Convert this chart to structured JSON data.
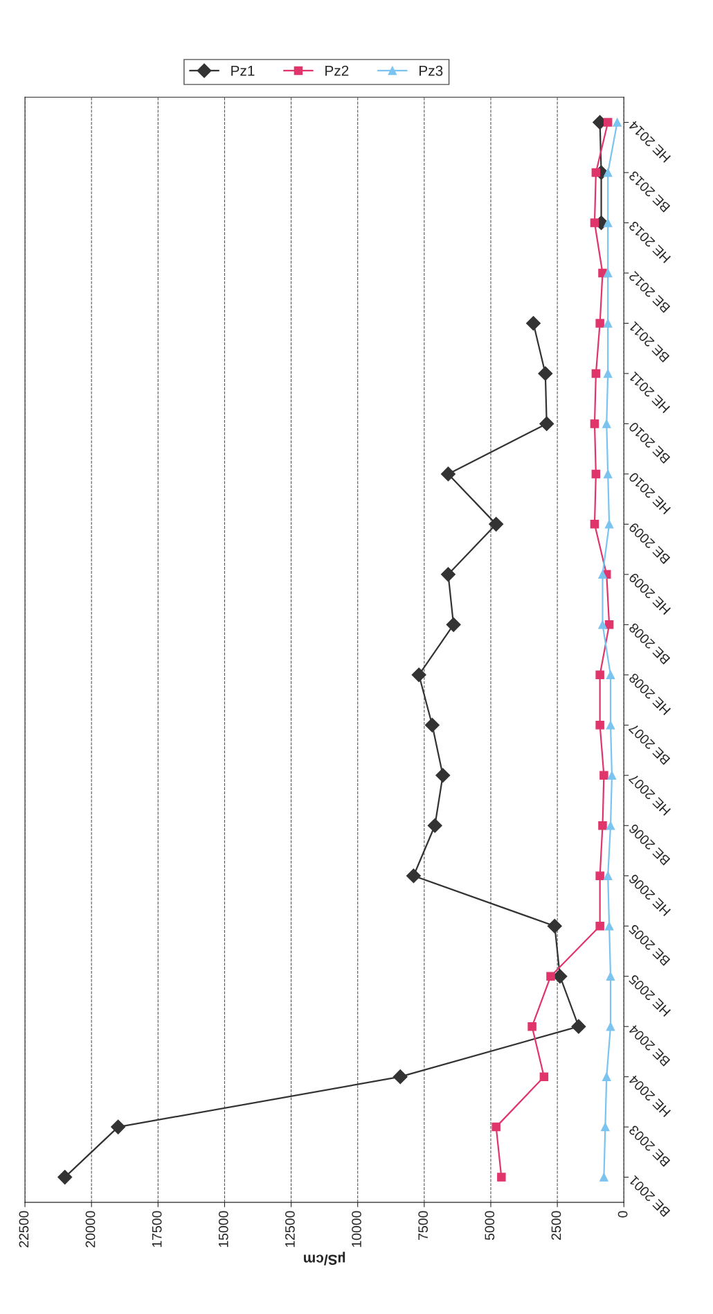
{
  "chart_data": {
    "type": "line",
    "orientation": "horizontal",
    "xlabel": "µS/cm",
    "categories": [
      "HE 2014",
      "BE 2013",
      "HE 2013",
      "BE 2012",
      "BE 2011",
      "HE 2011",
      "BE 2010",
      "HE 2010",
      "BE 2009",
      "HE 2009",
      "BE 2008",
      "HE 2008",
      "BE 2007",
      "HE 2007",
      "BE 2006",
      "HE 2006",
      "BE 2005",
      "HE 2005",
      "BE 2004",
      "HE 2004",
      "BE 2003",
      "BE 2001"
    ],
    "series": [
      {
        "name": "Pz1",
        "color": "#333333",
        "marker": "diamond",
        "values": [
          900,
          850,
          850,
          null,
          3400,
          2950,
          2900,
          6600,
          4800,
          6600,
          6400,
          7700,
          7200,
          6800,
          7100,
          7900,
          2600,
          2400,
          1700,
          8400,
          19000,
          21000
        ]
      },
      {
        "name": "Pz2",
        "color": "#e0356b",
        "marker": "square",
        "values": [
          600,
          1050,
          1100,
          800,
          900,
          1050,
          1100,
          1050,
          1100,
          650,
          550,
          900,
          900,
          750,
          800,
          900,
          900,
          2750,
          3450,
          3000,
          4800,
          4600
        ]
      },
      {
        "name": "Pz3",
        "color": "#7cc4f0",
        "marker": "triangle",
        "values": [
          250,
          600,
          600,
          600,
          600,
          600,
          650,
          600,
          550,
          800,
          800,
          500,
          500,
          450,
          500,
          600,
          550,
          500,
          500,
          650,
          700,
          750
        ]
      }
    ],
    "xlim": [
      22500,
      0
    ],
    "xticks": [
      22500,
      20000,
      17500,
      15000,
      12500,
      10000,
      7500,
      5000,
      2500,
      0
    ],
    "grid": "x",
    "legend": "top right",
    "line_style": "solid"
  }
}
